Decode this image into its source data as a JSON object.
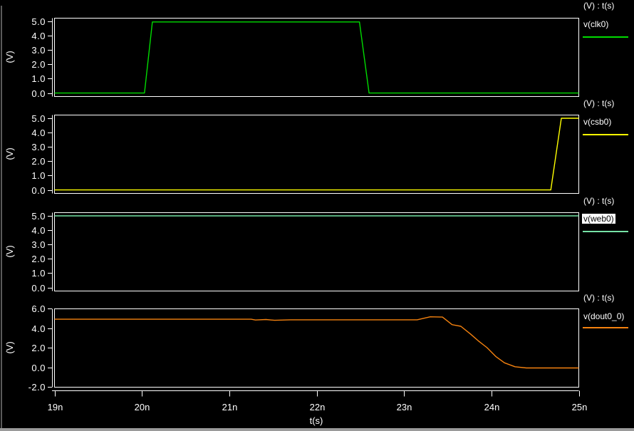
{
  "window": {
    "background": "#000000",
    "axis_color": "#ffffff",
    "selected_legend_bg": "#ffffff",
    "selected_legend_fg": "#000000"
  },
  "panels": [
    {
      "header": "(V) : t(s)",
      "legend": "v(clk0)",
      "selected": false
    },
    {
      "header": "(V) : t(s)",
      "legend": "v(csb0)",
      "selected": false
    },
    {
      "header": "(V) : t(s)",
      "legend": "v(web0)",
      "selected": true
    },
    {
      "header": "(V) : t(s)",
      "legend": "v(dout0_0)",
      "selected": false
    }
  ],
  "xaxis": {
    "label": "t(s)",
    "unit": "ns",
    "tick_values": [
      19,
      20,
      21,
      22,
      23,
      24,
      25
    ],
    "tick_labels": [
      "19n",
      "20n",
      "21n",
      "22n",
      "23n",
      "24n",
      "25n"
    ],
    "xlim": [
      19,
      25
    ]
  },
  "chart_data": [
    {
      "type": "line",
      "name": "v(clk0)",
      "color": "#00dc00",
      "ylabel": "(V)",
      "xlabel": "t(s)",
      "x_unit": "ns",
      "xlim": [
        19,
        25
      ],
      "ylim": [
        -0.22,
        5.25
      ],
      "ytick_values": [
        5,
        4,
        3,
        2,
        1,
        0
      ],
      "ytick_labels": [
        "5.0",
        "4.0",
        "3.0",
        "2.0",
        "1.0",
        "0.0"
      ],
      "points": [
        [
          19,
          0
        ],
        [
          20.03,
          0
        ],
        [
          20.12,
          4.96
        ],
        [
          22.49,
          4.96
        ],
        [
          22.6,
          0
        ],
        [
          25,
          0
        ]
      ]
    },
    {
      "type": "line",
      "name": "v(csb0)",
      "color": "#ffff00",
      "ylabel": "(V)",
      "xlabel": "t(s)",
      "x_unit": "ns",
      "xlim": [
        19,
        25
      ],
      "ylim": [
        -0.22,
        5.25
      ],
      "ytick_values": [
        5,
        4,
        3,
        2,
        1,
        0
      ],
      "ytick_labels": [
        "5.0",
        "4.0",
        "3.0",
        "2.0",
        "1.0",
        "0.0"
      ],
      "points": [
        [
          19,
          0
        ],
        [
          24.68,
          0
        ],
        [
          24.8,
          5.0
        ],
        [
          25,
          5.0
        ]
      ]
    },
    {
      "type": "line",
      "name": "v(web0)",
      "color": "#76e3a6",
      "ylabel": "(V)",
      "xlabel": "t(s)",
      "x_unit": "ns",
      "xlim": [
        19,
        25
      ],
      "ylim": [
        -0.22,
        5.25
      ],
      "ytick_values": [
        5,
        4,
        3,
        2,
        1,
        0
      ],
      "ytick_labels": [
        "5.0",
        "4.0",
        "3.0",
        "2.0",
        "1.0",
        "0.0"
      ],
      "points": [
        [
          19,
          5.0
        ],
        [
          25,
          5.0
        ]
      ]
    },
    {
      "type": "line",
      "name": "v(dout0_0)",
      "color": "#f5820f",
      "ylabel": "(V)",
      "xlabel": "t(s)",
      "x_unit": "ns",
      "xlim": [
        19,
        25
      ],
      "ylim": [
        -2,
        6
      ],
      "ytick_values": [
        6,
        4,
        2,
        0,
        -2
      ],
      "ytick_labels": [
        "6.0",
        "4.0",
        "2.0",
        "0.0",
        "-2.0"
      ],
      "points": [
        [
          19,
          4.9
        ],
        [
          21.25,
          4.9
        ],
        [
          21.3,
          4.82
        ],
        [
          21.42,
          4.87
        ],
        [
          21.52,
          4.79
        ],
        [
          21.7,
          4.84
        ],
        [
          23.15,
          4.84
        ],
        [
          23.3,
          5.15
        ],
        [
          23.44,
          5.12
        ],
        [
          23.55,
          4.35
        ],
        [
          23.65,
          4.18
        ],
        [
          23.76,
          3.4
        ],
        [
          23.85,
          2.7
        ],
        [
          23.95,
          2.0
        ],
        [
          24.05,
          1.1
        ],
        [
          24.15,
          0.45
        ],
        [
          24.27,
          0.05
        ],
        [
          24.4,
          -0.07
        ],
        [
          25,
          -0.07
        ]
      ]
    }
  ]
}
